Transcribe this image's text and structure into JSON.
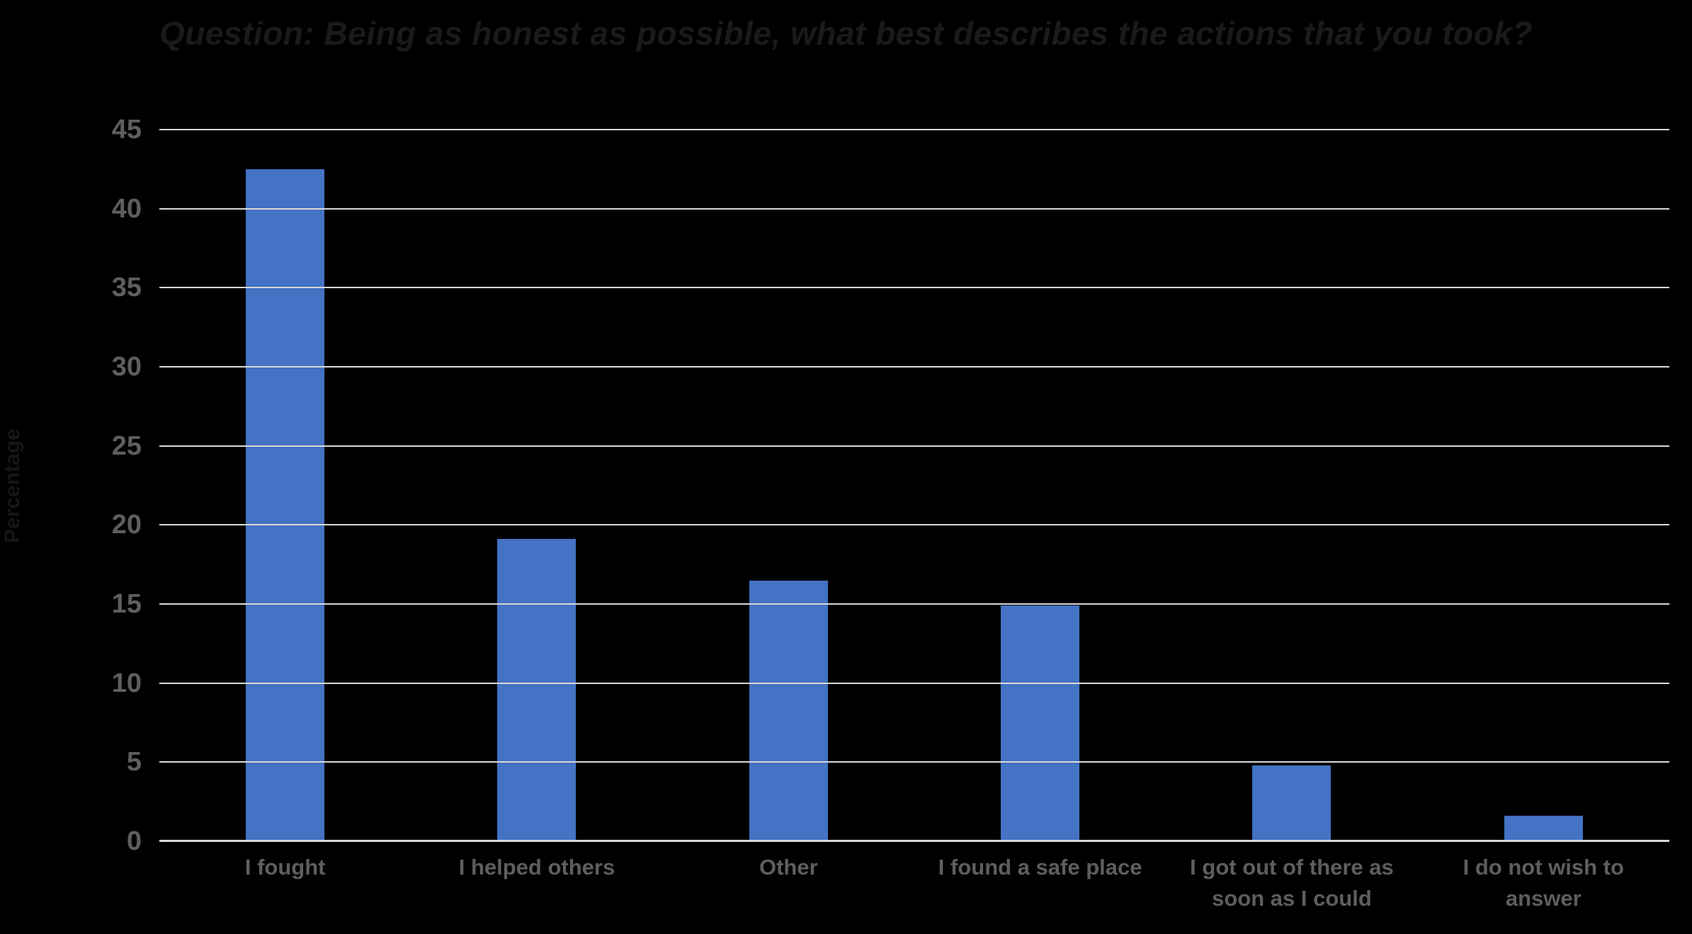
{
  "title": "Question: Being as honest as possible, what best describes the actions that you took?",
  "chart_data": {
    "type": "bar",
    "title": "Question: Being as honest as possible, what best describes the actions that you took?",
    "xlabel": "",
    "ylabel": "Percentage",
    "categories": [
      "I fought",
      "I helped others",
      "Other",
      "I found a safe place",
      "I got out of there as soon as I could",
      "I do not wish to answer"
    ],
    "values": [
      42.5,
      19.1,
      16.5,
      14.9,
      4.8,
      1.6
    ],
    "ylim": [
      0,
      45
    ],
    "ytick_step": 5,
    "yticks": [
      0,
      5,
      10,
      15,
      20,
      25,
      30,
      35,
      40,
      45
    ],
    "grid": true,
    "legend": false
  },
  "colors": {
    "background": "#000000",
    "bar": "#4472C4",
    "gridline": "#D9D9D9",
    "axis_line": "#D9D9D9",
    "tick_label": "#5E5E5E",
    "title_text": "#1A1A1A"
  }
}
